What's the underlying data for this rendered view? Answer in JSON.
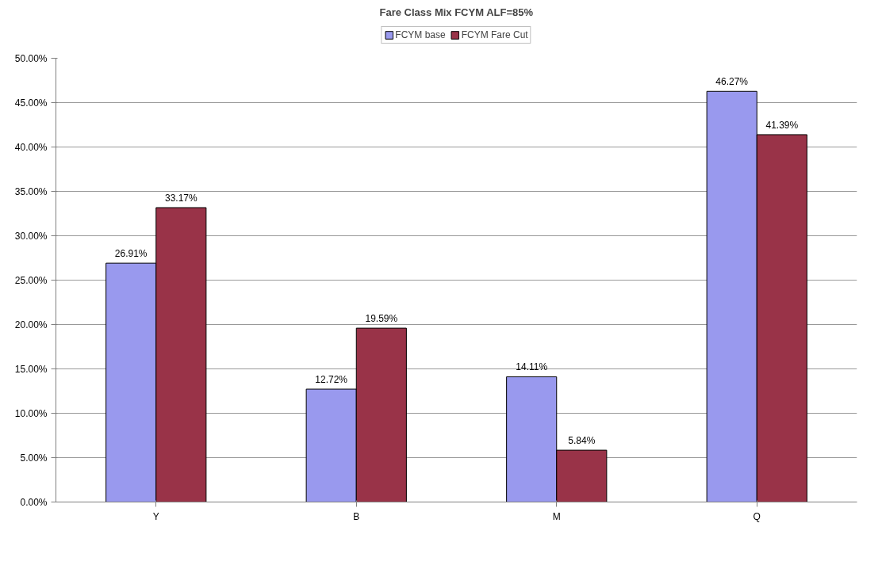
{
  "chart_data": {
    "type": "bar",
    "title": "Fare Class Mix FCYM ALF=85%",
    "categories": [
      "Y",
      "B",
      "M",
      "Q"
    ],
    "series": [
      {
        "name": "FCYM base",
        "color": "#9999ee",
        "values": [
          26.91,
          12.72,
          14.11,
          46.27
        ],
        "value_labels": [
          "26.91%",
          "12.72%",
          "14.11%",
          "46.27%"
        ]
      },
      {
        "name": "FCYM Fare Cut",
        "color": "#993348",
        "values": [
          33.17,
          19.59,
          5.84,
          41.39
        ],
        "value_labels": [
          "33.17%",
          "19.59%",
          "5.84%",
          "41.39%"
        ]
      }
    ],
    "ylim": [
      0,
      50
    ],
    "yticks": [
      {
        "value": 0,
        "label": "0.00%"
      },
      {
        "value": 5,
        "label": "5.00%"
      },
      {
        "value": 10,
        "label": "10.00%"
      },
      {
        "value": 15,
        "label": "15.00%"
      },
      {
        "value": 20,
        "label": "20.00%"
      },
      {
        "value": 25,
        "label": "25.00%"
      },
      {
        "value": 30,
        "label": "30.00%"
      },
      {
        "value": 35,
        "label": "35.00%"
      },
      {
        "value": 40,
        "label": "40.00%"
      },
      {
        "value": 45,
        "label": "45.00%"
      },
      {
        "value": 50,
        "label": "50.00%"
      }
    ],
    "grid": "y",
    "legend": "top"
  }
}
